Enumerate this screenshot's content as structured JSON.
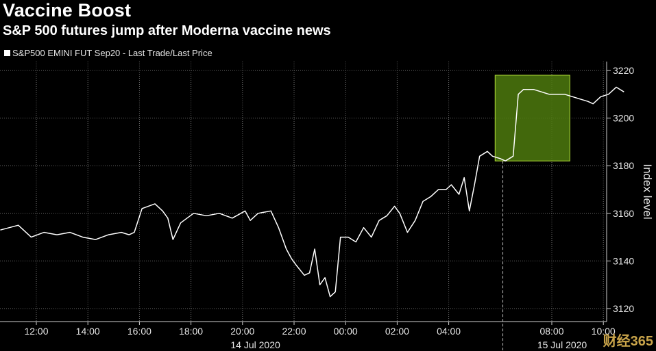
{
  "title": "Vaccine Boost",
  "subtitle": "S&P 500 futures jump after Moderna vaccine news",
  "legend": {
    "label": "S&P500 EMINI FUT  Sep20 - Last Trade/Last Price"
  },
  "watermark": "财经365",
  "colors": {
    "line": "#ffffff",
    "highlight_fill": "#4d7a0e",
    "highlight_stroke": "#b5e23a",
    "grid": "#6a6a6a"
  },
  "chart_data": {
    "type": "line",
    "title": "Vaccine Boost",
    "subtitle": "S&P 500 futures jump after Moderna vaccine news",
    "ylabel": "Index level",
    "xlabel": "",
    "ylim": [
      3115,
      3222
    ],
    "y_ticks": [
      3120,
      3140,
      3160,
      3180,
      3200,
      3220
    ],
    "x_ticks": [
      "12:00",
      "14:00",
      "16:00",
      "18:00",
      "20:00",
      "22:00",
      "00:00",
      "02:00",
      "04:00",
      "08:00",
      "10:00"
    ],
    "date_labels": [
      "14 Jul 2020",
      "15 Jul 2020"
    ],
    "series": [
      {
        "name": "S&P500 EMINI FUT  Sep20 - Last Trade/Last Price",
        "x_hours": [
          10.6,
          11.3,
          11.8,
          12.3,
          12.8,
          13.3,
          13.8,
          14.3,
          14.8,
          15.3,
          15.6,
          15.8,
          16.1,
          16.6,
          16.9,
          17.1,
          17.3,
          17.6,
          18.1,
          18.6,
          19.1,
          19.6,
          20.1,
          20.3,
          20.6,
          21.1,
          21.4,
          21.7,
          21.9,
          22.1,
          22.4,
          22.6,
          22.8,
          23.0,
          23.2,
          23.4,
          23.6,
          23.8,
          24.1,
          24.4,
          24.7,
          25.0,
          25.3,
          25.6,
          25.9,
          26.1,
          26.4,
          26.7,
          27.0,
          27.3,
          27.6,
          27.9,
          28.1,
          28.4,
          28.6,
          28.8,
          29.0,
          29.2,
          29.5,
          29.7,
          30.0,
          30.2,
          30.5,
          30.7,
          30.9,
          31.3,
          31.6,
          31.9,
          32.2,
          32.5,
          32.8,
          33.1,
          33.4,
          33.6,
          33.9,
          34.2,
          34.5,
          34.8
        ],
        "values": [
          3153,
          3155,
          3150,
          3152,
          3151,
          3152,
          3150,
          3149,
          3151,
          3152,
          3151,
          3152,
          3162,
          3164,
          3161,
          3158,
          3149,
          3156,
          3160,
          3159,
          3160,
          3158,
          3161,
          3157,
          3160,
          3161,
          3154,
          3145,
          3141,
          3138,
          3134,
          3135,
          3145,
          3130,
          3133,
          3125,
          3127,
          3150,
          3150,
          3148,
          3154,
          3150,
          3157,
          3159,
          3163,
          3160,
          3152,
          3157,
          3165,
          3167,
          3170,
          3170,
          3172,
          3168,
          3175,
          3161,
          3172,
          3184,
          3186,
          3184,
          3183,
          3182,
          3184,
          3210,
          3212,
          3212,
          3211,
          3210,
          3210,
          3210,
          3209,
          3208,
          3207,
          3206,
          3209,
          3210,
          3213,
          3211
        ]
      }
    ],
    "highlight": {
      "x_start": 29.8,
      "x_end": 32.7,
      "y_low": 3182,
      "y_high": 3218
    },
    "divider_hour": 30.1,
    "grid": true
  }
}
